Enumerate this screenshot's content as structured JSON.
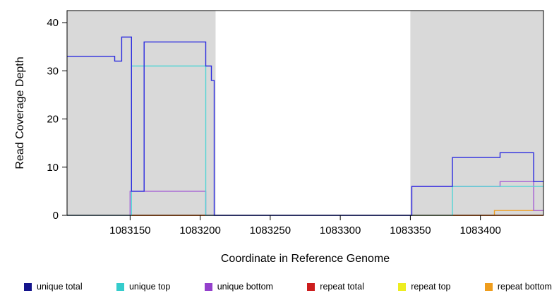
{
  "chart_data": {
    "type": "line",
    "title": "",
    "xlabel": "Coordinate in Reference Genome",
    "ylabel": "Read Coverage Depth",
    "xlim": [
      1083105,
      1083445
    ],
    "ylim": [
      0,
      42.5
    ],
    "x_ticks": [
      1083150,
      1083200,
      1083250,
      1083300,
      1083350,
      1083400
    ],
    "x_tick_labels": [
      "1083150",
      "1083200",
      "1083250",
      "1083300",
      "1083350",
      "1083400"
    ],
    "y_ticks": [
      0,
      10,
      20,
      30,
      40
    ],
    "y_tick_labels": [
      "0",
      "10",
      "20",
      "30",
      "40"
    ],
    "grid": false,
    "legend_position": "bottom",
    "shade_color": "#d9d9d9",
    "shaded_regions": [
      {
        "x0": 1083105,
        "x1": 1083211
      },
      {
        "x0": 1083350,
        "x1": 1083445
      }
    ],
    "series": [
      {
        "name": "unique total",
        "color": "#2b2be0",
        "points": [
          [
            1083105,
            33
          ],
          [
            1083139,
            33
          ],
          [
            1083139,
            32
          ],
          [
            1083144,
            32
          ],
          [
            1083144,
            37
          ],
          [
            1083151,
            37
          ],
          [
            1083151,
            5
          ],
          [
            1083160,
            5
          ],
          [
            1083160,
            36
          ],
          [
            1083204,
            36
          ],
          [
            1083204,
            31
          ],
          [
            1083208,
            31
          ],
          [
            1083208,
            28
          ],
          [
            1083210,
            28
          ],
          [
            1083210,
            0
          ],
          [
            1083351,
            0
          ],
          [
            1083351,
            6
          ],
          [
            1083380,
            6
          ],
          [
            1083380,
            12
          ],
          [
            1083414,
            12
          ],
          [
            1083414,
            13
          ],
          [
            1083438,
            13
          ],
          [
            1083438,
            7
          ],
          [
            1083445,
            7
          ]
        ]
      },
      {
        "name": "unique top",
        "color": "#52d5d5",
        "points": [
          [
            1083105,
            0
          ],
          [
            1083151,
            0
          ],
          [
            1083151,
            31
          ],
          [
            1083204,
            31
          ],
          [
            1083204,
            0
          ],
          [
            1083380,
            0
          ],
          [
            1083380,
            6
          ],
          [
            1083445,
            6
          ]
        ]
      },
      {
        "name": "unique bottom",
        "color": "#a55fd5",
        "points": [
          [
            1083105,
            0
          ],
          [
            1083150,
            0
          ],
          [
            1083150,
            5
          ],
          [
            1083204,
            5
          ],
          [
            1083204,
            0
          ],
          [
            1083351,
            0
          ],
          [
            1083351,
            6
          ],
          [
            1083414,
            6
          ],
          [
            1083414,
            7
          ],
          [
            1083438,
            7
          ],
          [
            1083438,
            1
          ],
          [
            1083445,
            1
          ]
        ]
      },
      {
        "name": "repeat total",
        "color": "#cc2222",
        "points": [
          [
            1083105,
            0
          ],
          [
            1083445,
            0
          ]
        ]
      },
      {
        "name": "repeat top",
        "color": "#ebeb25",
        "points": [
          [
            1083105,
            0
          ],
          [
            1083445,
            0
          ]
        ]
      },
      {
        "name": "repeat bottom",
        "color": "#ef9f22",
        "points": [
          [
            1083105,
            0
          ],
          [
            1083410,
            0
          ],
          [
            1083410,
            1
          ],
          [
            1083445,
            1
          ]
        ]
      }
    ],
    "legend": [
      {
        "label": "unique total",
        "color": "#14148c"
      },
      {
        "label": "unique top",
        "color": "#35cccc"
      },
      {
        "label": "unique bottom",
        "color": "#9440cc"
      },
      {
        "label": "repeat total",
        "color": "#cc1d1d"
      },
      {
        "label": "repeat top",
        "color": "#eded20"
      },
      {
        "label": "repeat bottom",
        "color": "#ef9d1d"
      }
    ]
  }
}
